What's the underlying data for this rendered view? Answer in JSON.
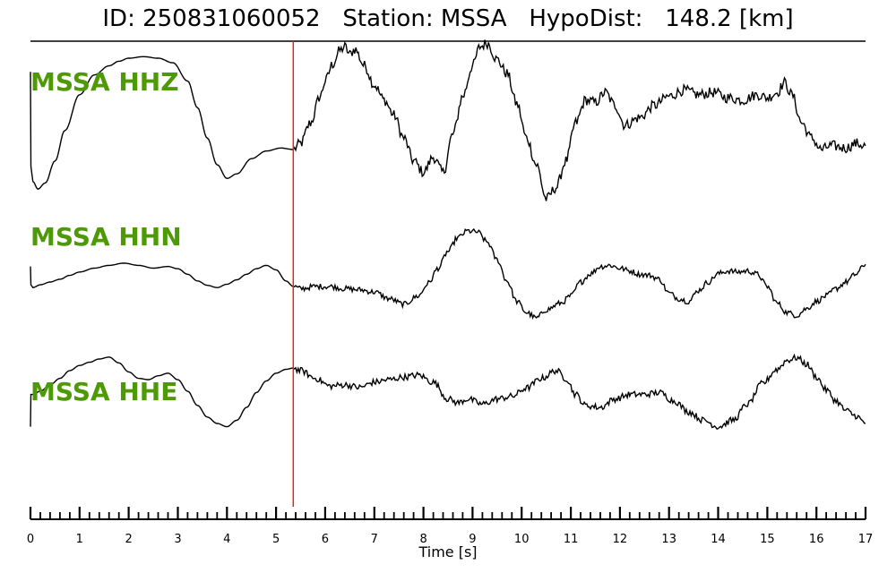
{
  "chart_data": {
    "type": "line",
    "title": "ID: 250831060052   Station: MSSA   HypoDist:   148.2 [km]",
    "xlabel": "Time [s]",
    "xlim": [
      0,
      17
    ],
    "x_ticks": [
      "0",
      "1",
      "2",
      "3",
      "4",
      "5",
      "6",
      "7",
      "8",
      "9",
      "10",
      "11",
      "12",
      "13",
      "14",
      "15",
      "16",
      "17"
    ],
    "pick_time": 5.35,
    "label_color": "#4e9a06",
    "trace_color": "#000000",
    "pick_color": "#e8241a",
    "series": [
      {
        "name": "MSSA HHZ",
        "t": [
          0,
          0.01,
          0.05,
          0.15,
          0.3,
          0.5,
          0.7,
          1.0,
          1.3,
          1.6,
          1.8,
          2.0,
          2.3,
          2.6,
          2.9,
          3.2,
          3.4,
          3.6,
          3.8,
          4.0,
          4.2,
          4.5,
          4.8,
          5.1,
          5.35,
          5.5,
          5.7,
          5.9,
          6.0,
          6.15,
          6.3,
          6.4,
          6.5,
          6.6,
          6.8,
          7.0,
          7.2,
          7.4,
          7.6,
          7.8,
          8.0,
          8.2,
          8.4,
          8.6,
          8.8,
          9.0,
          9.15,
          9.3,
          9.5,
          9.7,
          9.9,
          10.1,
          10.3,
          10.5,
          10.7,
          10.9,
          11.1,
          11.3,
          11.5,
          11.7,
          11.9,
          12.1,
          12.4,
          12.7,
          13.0,
          13.3,
          13.6,
          13.9,
          14.2,
          14.5,
          14.8,
          15.0,
          15.2,
          15.35,
          15.5,
          15.7,
          15.9,
          16.1,
          16.3,
          16.6,
          16.8,
          17.0
        ],
        "y": [
          0.62,
          -0.62,
          -0.82,
          -0.92,
          -0.84,
          -0.55,
          -0.15,
          0.32,
          0.58,
          0.7,
          0.76,
          0.8,
          0.82,
          0.8,
          0.74,
          0.5,
          0.15,
          -0.25,
          -0.6,
          -0.78,
          -0.72,
          -0.52,
          -0.42,
          -0.38,
          -0.4,
          -0.32,
          -0.05,
          0.3,
          0.5,
          0.72,
          0.9,
          0.95,
          0.85,
          0.92,
          0.7,
          0.45,
          0.25,
          0.05,
          -0.25,
          -0.55,
          -0.7,
          -0.5,
          -0.7,
          -0.2,
          0.3,
          0.7,
          0.95,
          1.0,
          0.78,
          0.6,
          0.2,
          -0.25,
          -0.6,
          -1.05,
          -0.9,
          -0.55,
          -0.05,
          0.25,
          0.22,
          0.35,
          0.18,
          -0.08,
          0.02,
          0.18,
          0.3,
          0.38,
          0.32,
          0.35,
          0.28,
          0.25,
          0.32,
          0.28,
          0.35,
          0.48,
          0.32,
          -0.05,
          -0.25,
          -0.4,
          -0.35,
          -0.38,
          -0.32,
          -0.35
        ]
      },
      {
        "name": "MSSA HHN",
        "t": [
          0,
          0.01,
          0.05,
          0.2,
          0.4,
          0.6,
          0.8,
          1.0,
          1.3,
          1.6,
          1.9,
          2.2,
          2.5,
          2.8,
          3.0,
          3.2,
          3.4,
          3.6,
          3.8,
          4.0,
          4.2,
          4.4,
          4.6,
          4.8,
          5.0,
          5.2,
          5.35,
          5.5,
          5.8,
          6.1,
          6.4,
          6.7,
          7.0,
          7.3,
          7.6,
          7.9,
          8.1,
          8.3,
          8.5,
          8.7,
          8.9,
          9.1,
          9.3,
          9.5,
          9.7,
          9.9,
          10.1,
          10.3,
          10.5,
          10.8,
          11.0,
          11.2,
          11.4,
          11.6,
          11.8,
          12.0,
          12.2,
          12.4,
          12.6,
          12.8,
          13.0,
          13.2,
          13.4,
          13.6,
          13.8,
          14.0,
          14.2,
          14.4,
          14.6,
          14.8,
          15.0,
          15.2,
          15.4,
          15.6,
          15.8,
          16.0,
          16.2,
          16.4,
          16.6,
          16.8,
          17.0
        ],
        "y": [
          0.28,
          -0.05,
          -0.1,
          -0.05,
          0.0,
          0.05,
          0.12,
          0.18,
          0.25,
          0.3,
          0.34,
          0.3,
          0.25,
          0.28,
          0.24,
          0.14,
          0.02,
          -0.06,
          -0.1,
          -0.04,
          0.04,
          0.14,
          0.24,
          0.3,
          0.22,
          0.02,
          -0.08,
          -0.12,
          -0.08,
          -0.08,
          -0.12,
          -0.14,
          -0.18,
          -0.3,
          -0.4,
          -0.25,
          -0.02,
          0.25,
          0.55,
          0.8,
          0.92,
          0.9,
          0.72,
          0.4,
          0.02,
          -0.35,
          -0.55,
          -0.65,
          -0.5,
          -0.38,
          -0.25,
          0.0,
          0.15,
          0.28,
          0.3,
          0.25,
          0.2,
          0.14,
          0.12,
          0.05,
          -0.2,
          -0.3,
          -0.35,
          -0.15,
          0.0,
          0.15,
          0.2,
          0.18,
          0.2,
          0.14,
          -0.08,
          -0.38,
          -0.55,
          -0.6,
          -0.48,
          -0.35,
          -0.25,
          -0.12,
          0.0,
          0.14,
          0.32
        ]
      },
      {
        "name": "MSSA HHE",
        "t": [
          0,
          0.01,
          0.05,
          0.2,
          0.4,
          0.6,
          0.8,
          1.0,
          1.2,
          1.4,
          1.6,
          1.8,
          2.0,
          2.2,
          2.4,
          2.6,
          2.8,
          3.0,
          3.2,
          3.4,
          3.6,
          3.8,
          4.0,
          4.2,
          4.4,
          4.6,
          4.8,
          5.0,
          5.2,
          5.35,
          5.5,
          5.8,
          6.1,
          6.4,
          6.7,
          7.0,
          7.3,
          7.6,
          7.9,
          8.2,
          8.5,
          8.7,
          8.9,
          9.2,
          9.5,
          9.8,
          10.1,
          10.4,
          10.7,
          10.9,
          11.1,
          11.3,
          11.6,
          11.9,
          12.2,
          12.5,
          12.8,
          13.1,
          13.4,
          13.7,
          14.0,
          14.3,
          14.6,
          14.9,
          15.2,
          15.4,
          15.6,
          15.8,
          16.0,
          16.2,
          16.4,
          16.6,
          16.8,
          17.0
        ],
        "y": [
          -0.55,
          -0.05,
          -0.05,
          0.0,
          0.1,
          0.2,
          0.32,
          0.4,
          0.45,
          0.5,
          0.53,
          0.44,
          0.3,
          0.2,
          0.18,
          0.24,
          0.28,
          0.18,
          0.0,
          -0.22,
          -0.4,
          -0.5,
          -0.55,
          -0.45,
          -0.25,
          -0.02,
          0.16,
          0.28,
          0.34,
          0.36,
          0.32,
          0.2,
          0.08,
          0.1,
          0.06,
          0.14,
          0.18,
          0.22,
          0.25,
          0.14,
          -0.12,
          -0.18,
          -0.12,
          -0.2,
          -0.12,
          -0.08,
          0.05,
          0.2,
          0.32,
          0.2,
          -0.05,
          -0.22,
          -0.25,
          -0.12,
          -0.05,
          -0.05,
          -0.02,
          -0.15,
          -0.32,
          -0.45,
          -0.55,
          -0.45,
          -0.2,
          0.12,
          0.34,
          0.48,
          0.52,
          0.42,
          0.22,
          0.02,
          -0.15,
          -0.3,
          -0.38,
          -0.5
        ]
      }
    ]
  }
}
